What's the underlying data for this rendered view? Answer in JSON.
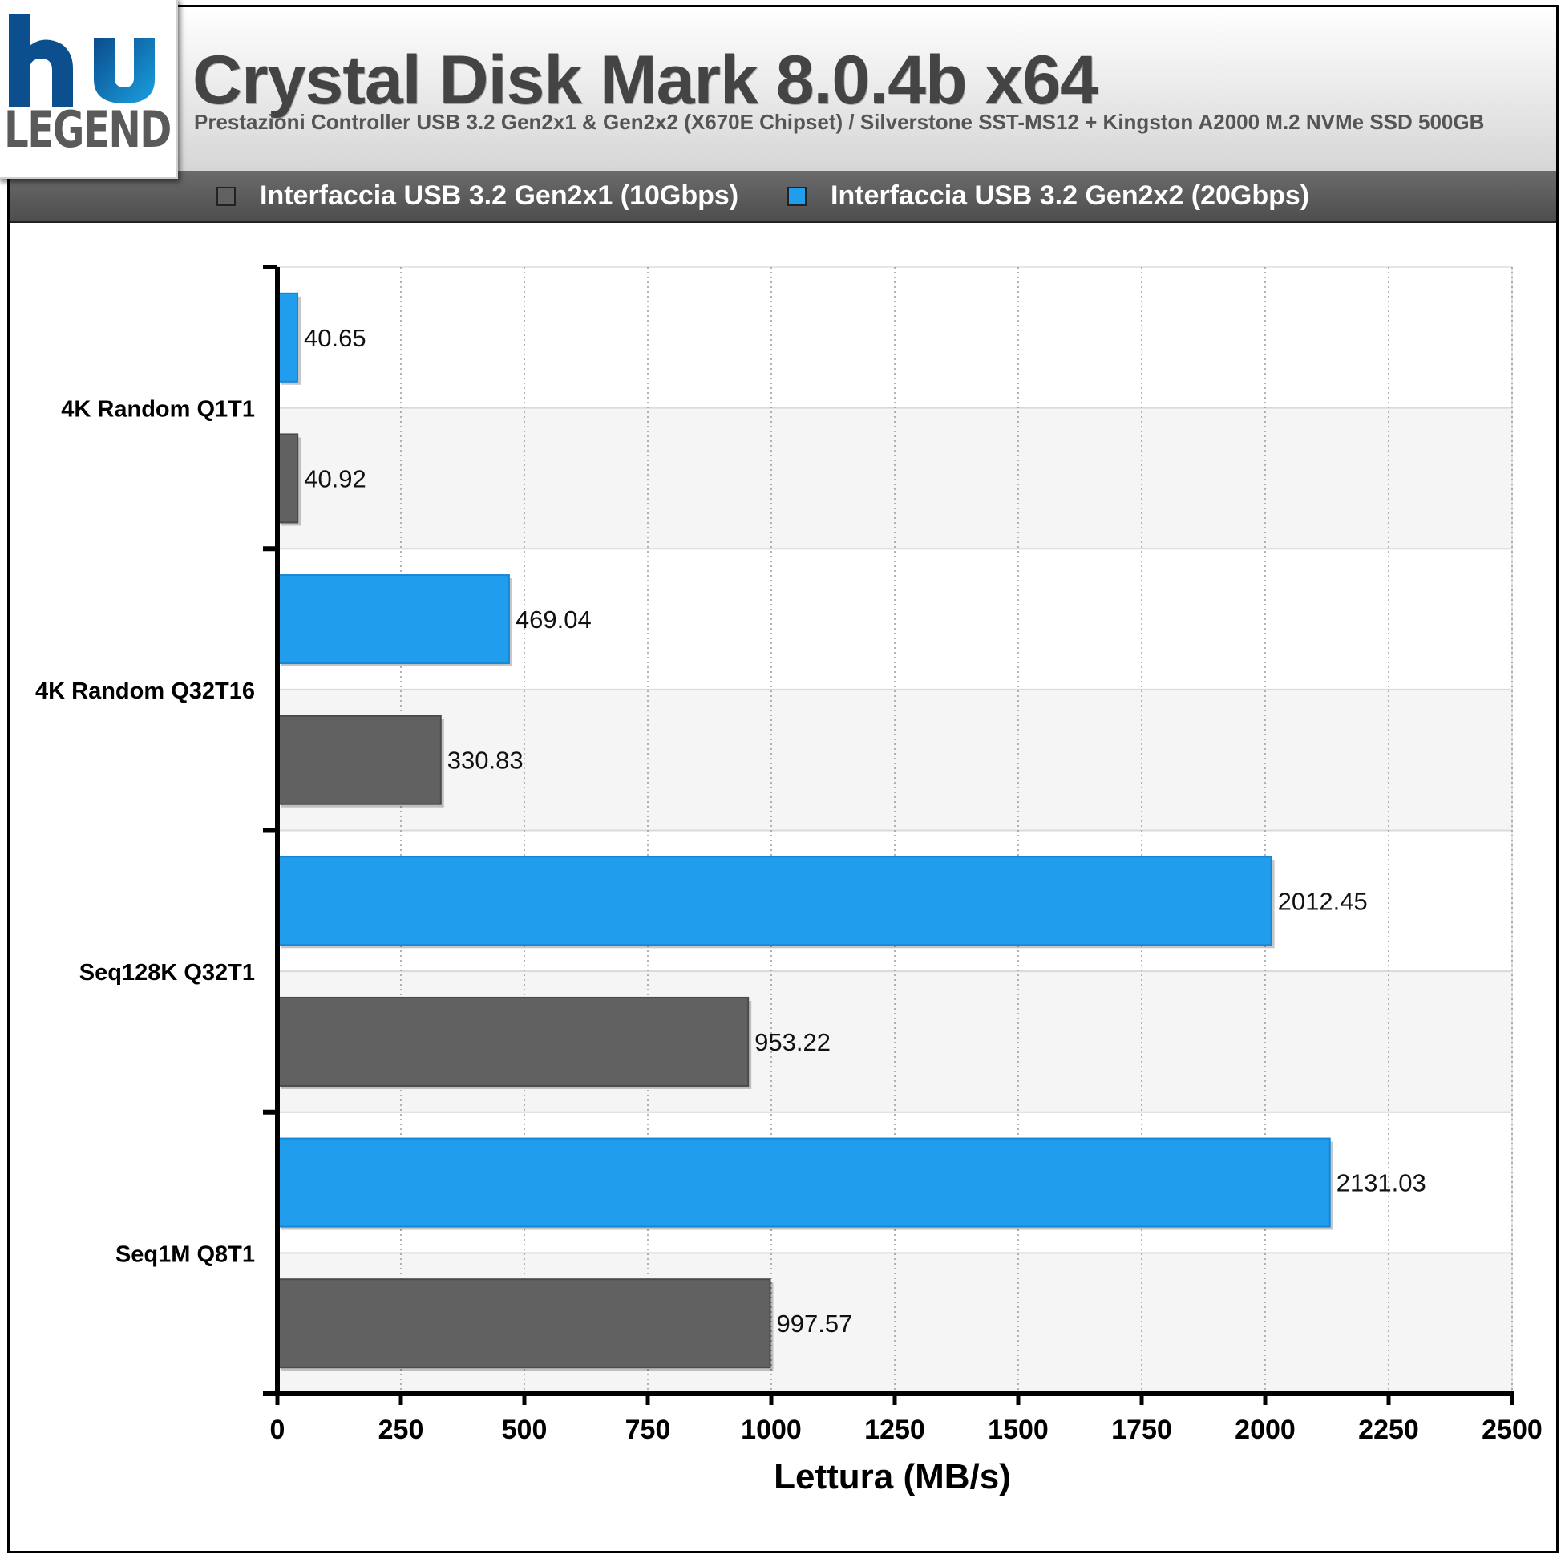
{
  "logo": {
    "text": "LEGEND"
  },
  "header": {
    "title": "Crystal Disk Mark 8.0.4b x64",
    "subtitle": "Prestazioni Controller USB 3.2 Gen2x1 & Gen2x2 (X670E Chipset) / Silverstone SST-MS12 + Kingston A2000 M.2 NVMe SSD 500GB"
  },
  "legend": [
    {
      "label": "Interfaccia USB 3.2 Gen2x1 (10Gbps)",
      "color": "#616161"
    },
    {
      "label": "Interfaccia USB 3.2 Gen2x2 (20Gbps)",
      "color": "#219ded"
    }
  ],
  "chart_data": {
    "type": "bar",
    "orientation": "horizontal",
    "title": "Crystal Disk Mark 8.0.4b x64",
    "xlabel": "Lettura (MB/s)",
    "ylabel": "",
    "xlim": [
      0,
      2500
    ],
    "xticks": [
      0,
      250,
      500,
      750,
      1000,
      1250,
      1500,
      1750,
      2000,
      2250,
      2500
    ],
    "categories": [
      "4K Random Q1T1",
      "4K Random Q32T16",
      "Seq128K Q32T1",
      "Seq1M Q8T1"
    ],
    "series": [
      {
        "name": "Interfaccia USB 3.2 Gen2x2 (20Gbps)",
        "color": "#219ded",
        "values": [
          40.65,
          469.04,
          2012.45,
          2131.03
        ]
      },
      {
        "name": "Interfaccia USB 3.2 Gen2x1 (10Gbps)",
        "color": "#616161",
        "values": [
          40.92,
          330.83,
          953.22,
          997.57
        ]
      }
    ],
    "grid": "vertical-dotted",
    "legend_position": "top"
  }
}
